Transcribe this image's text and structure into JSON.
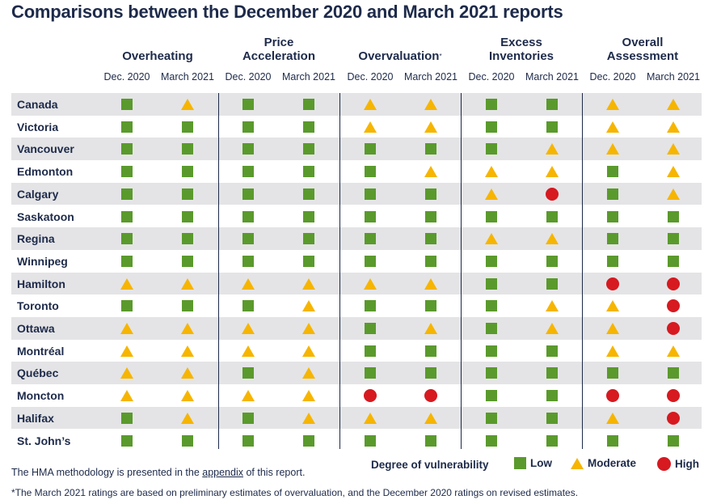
{
  "title": "Comparisons between the December 2020 and March 2021 reports",
  "groups": [
    {
      "name": "Overheating",
      "marker": ""
    },
    {
      "name": "Price\nAcceleration",
      "marker": ""
    },
    {
      "name": "Overvaluation",
      "marker": "*"
    },
    {
      "name": "Excess\nInventories",
      "marker": ""
    },
    {
      "name": "Overall\nAssessment",
      "marker": ""
    }
  ],
  "period_labels": [
    "Dec. 2020",
    "March 2021"
  ],
  "rows": [
    {
      "city": "Canada",
      "ratings": [
        "L",
        "M",
        "L",
        "L",
        "M",
        "M",
        "L",
        "L",
        "M",
        "M"
      ]
    },
    {
      "city": "Victoria",
      "ratings": [
        "L",
        "L",
        "L",
        "L",
        "M",
        "M",
        "L",
        "L",
        "M",
        "M"
      ]
    },
    {
      "city": "Vancouver",
      "ratings": [
        "L",
        "L",
        "L",
        "L",
        "L",
        "L",
        "L",
        "M",
        "M",
        "M"
      ]
    },
    {
      "city": "Edmonton",
      "ratings": [
        "L",
        "L",
        "L",
        "L",
        "L",
        "M",
        "M",
        "M",
        "L",
        "M"
      ]
    },
    {
      "city": "Calgary",
      "ratings": [
        "L",
        "L",
        "L",
        "L",
        "L",
        "L",
        "M",
        "H",
        "L",
        "M"
      ]
    },
    {
      "city": "Saskatoon",
      "ratings": [
        "L",
        "L",
        "L",
        "L",
        "L",
        "L",
        "L",
        "L",
        "L",
        "L"
      ]
    },
    {
      "city": "Regina",
      "ratings": [
        "L",
        "L",
        "L",
        "L",
        "L",
        "L",
        "M",
        "M",
        "L",
        "L"
      ]
    },
    {
      "city": "Winnipeg",
      "ratings": [
        "L",
        "L",
        "L",
        "L",
        "L",
        "L",
        "L",
        "L",
        "L",
        "L"
      ]
    },
    {
      "city": "Hamilton",
      "ratings": [
        "M",
        "M",
        "M",
        "M",
        "M",
        "M",
        "L",
        "L",
        "H",
        "H"
      ]
    },
    {
      "city": "Toronto",
      "ratings": [
        "L",
        "L",
        "L",
        "M",
        "L",
        "L",
        "L",
        "M",
        "M",
        "H"
      ]
    },
    {
      "city": "Ottawa",
      "ratings": [
        "M",
        "M",
        "M",
        "M",
        "L",
        "M",
        "L",
        "M",
        "M",
        "H"
      ]
    },
    {
      "city": "Montréal",
      "ratings": [
        "M",
        "M",
        "M",
        "M",
        "L",
        "L",
        "L",
        "L",
        "M",
        "M"
      ]
    },
    {
      "city": "Québec",
      "ratings": [
        "M",
        "M",
        "L",
        "M",
        "L",
        "L",
        "L",
        "L",
        "L",
        "L"
      ]
    },
    {
      "city": "Moncton",
      "ratings": [
        "M",
        "M",
        "M",
        "M",
        "H",
        "H",
        "L",
        "L",
        "H",
        "H"
      ]
    },
    {
      "city": "Halifax",
      "ratings": [
        "L",
        "M",
        "L",
        "M",
        "M",
        "M",
        "L",
        "L",
        "M",
        "H"
      ]
    },
    {
      "city": "St. John’s",
      "ratings": [
        "L",
        "L",
        "L",
        "L",
        "L",
        "L",
        "L",
        "L",
        "L",
        "L"
      ]
    }
  ],
  "rating_key": {
    "L": "Low",
    "M": "Moderate",
    "H": "High"
  },
  "colors": {
    "low": "#5a9a2c",
    "moderate": "#f6b500",
    "high": "#d71920",
    "text": "#1d2a4a",
    "row_shade": "#e4e4e6"
  },
  "footnotes": {
    "methodology_prefix": "The HMA methodology is presented in the ",
    "methodology_link": "appendix",
    "methodology_suffix": " of this report.",
    "asterisk_note": "*The March 2021 ratings are based on preliminary estimates of overvaluation, and the December 2020 ratings on revised estimates."
  },
  "legend": {
    "title": "Degree of vulnerability",
    "low": "Low",
    "moderate": "Moderate",
    "high": "High"
  }
}
